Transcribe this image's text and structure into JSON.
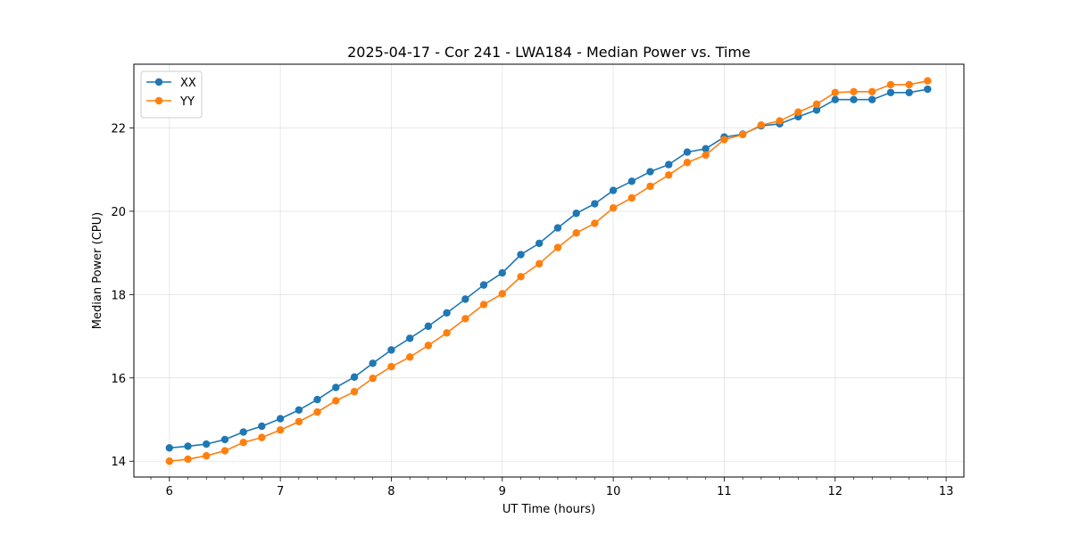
{
  "chart_data": {
    "type": "line",
    "title": "2025-04-17 - Cor 241 - LWA184 - Median Power vs. Time",
    "xlabel": "UT Time (hours)",
    "ylabel": "Median Power (CPU)",
    "xlim": [
      5.68,
      13.16
    ],
    "ylim": [
      13.62,
      23.53
    ],
    "xticks": [
      6,
      7,
      8,
      9,
      10,
      11,
      12,
      13
    ],
    "yticks": [
      14,
      16,
      18,
      20,
      22
    ],
    "grid": true,
    "legend_position": "top-left",
    "x": [
      6.0,
      6.167,
      6.333,
      6.5,
      6.667,
      6.833,
      7.0,
      7.167,
      7.333,
      7.5,
      7.667,
      7.833,
      8.0,
      8.167,
      8.333,
      8.5,
      8.667,
      8.833,
      9.0,
      9.167,
      9.333,
      9.5,
      9.667,
      9.833,
      10.0,
      10.167,
      10.333,
      10.5,
      10.667,
      10.833,
      11.0,
      11.167,
      11.333,
      11.5,
      11.667,
      11.833,
      12.0,
      12.167,
      12.333,
      12.5,
      12.667,
      12.833
    ],
    "series": [
      {
        "name": "XX",
        "color": "#1f77b4",
        "values": [
          14.32,
          14.36,
          14.41,
          14.52,
          14.7,
          14.84,
          15.02,
          15.23,
          15.48,
          15.77,
          16.02,
          16.35,
          16.67,
          16.95,
          17.24,
          17.56,
          17.89,
          18.23,
          18.52,
          18.96,
          19.23,
          19.6,
          19.95,
          20.18,
          20.5,
          20.72,
          20.95,
          21.12,
          21.42,
          21.5,
          21.78,
          21.85,
          22.05,
          22.1,
          22.27,
          22.43,
          22.68,
          22.68,
          22.68,
          22.85,
          22.85,
          22.93
        ]
      },
      {
        "name": "YY",
        "color": "#ff7f0e",
        "values": [
          14.0,
          14.05,
          14.13,
          14.25,
          14.45,
          14.57,
          14.75,
          14.95,
          15.18,
          15.45,
          15.67,
          15.99,
          16.27,
          16.5,
          16.78,
          17.08,
          17.42,
          17.76,
          18.02,
          18.43,
          18.74,
          19.13,
          19.48,
          19.71,
          20.08,
          20.32,
          20.6,
          20.87,
          21.17,
          21.35,
          21.72,
          21.84,
          22.07,
          22.17,
          22.38,
          22.57,
          22.85,
          22.87,
          22.87,
          23.04,
          23.04,
          23.13
        ]
      }
    ]
  }
}
